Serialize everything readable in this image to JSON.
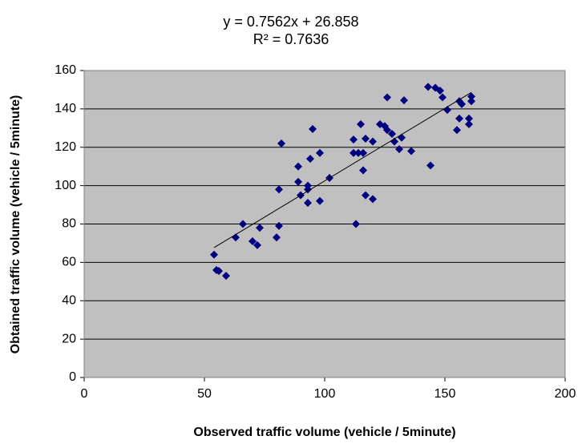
{
  "chart_data": {
    "type": "scatter",
    "annotations": [
      "y = 0.7562x + 26.858",
      "R² = 0.7636"
    ],
    "x_label": "Observed traffic volume (vehicle / 5minute)",
    "y_label": "Obtained traffic volume (vehicle / 5minute)",
    "x": [
      54,
      55,
      56,
      59,
      63,
      66,
      70,
      72,
      73,
      80,
      81,
      81,
      82,
      89,
      89,
      90,
      93,
      93,
      93,
      94,
      95,
      98,
      98,
      102,
      112,
      112,
      113,
      114,
      115,
      116,
      116,
      117,
      117,
      120,
      120,
      123,
      125,
      126,
      126,
      128,
      129,
      131,
      132,
      133,
      136,
      144,
      143,
      146,
      148,
      149,
      151,
      155,
      156,
      157,
      156,
      160,
      160,
      161,
      161
    ],
    "values": [
      64,
      56,
      55.5,
      53,
      73,
      80,
      71,
      69,
      78,
      73,
      79,
      98,
      122,
      110,
      102,
      95,
      100,
      98,
      91,
      114,
      129.5,
      117,
      92,
      104,
      124,
      117,
      80,
      117,
      132,
      117,
      108,
      124.5,
      95,
      123,
      93,
      132,
      131,
      146,
      129,
      127,
      123,
      119,
      125,
      144.5,
      118,
      110.5,
      151.5,
      151,
      149.5,
      146,
      139.5,
      129,
      135,
      142.5,
      144,
      135,
      132,
      144,
      146.5
    ],
    "color": "#000080",
    "trendline": {
      "x": [
        54,
        161
      ],
      "values": [
        67.7,
        148.6
      ],
      "color": "#000000"
    },
    "xlim": [
      0,
      200
    ],
    "xticks": [
      0,
      50,
      100,
      150,
      200
    ],
    "ylim": [
      0,
      160
    ],
    "yticks": [
      0,
      20,
      40,
      60,
      80,
      100,
      120,
      140,
      160
    ],
    "grid": true,
    "plot_background": "#c0c0c0"
  }
}
